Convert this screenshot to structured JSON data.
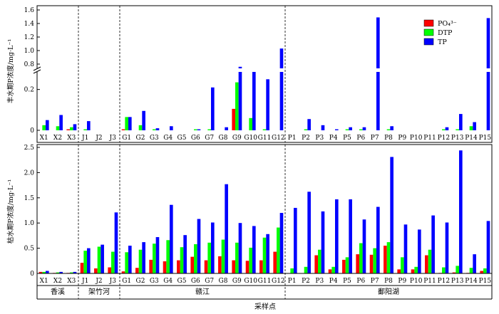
{
  "chart_data": [
    {
      "type": "bar",
      "ylabel": "丰水期P浓度/mg·L⁻¹",
      "y_axis_break": true,
      "ylim_lower": [
        0,
        0.3
      ],
      "ylim_upper": [
        0.6,
        1.6
      ],
      "yticks_lower": [
        "0",
        "0.2"
      ],
      "yticks_upper": [
        "0.8",
        "1.0",
        "1.2",
        "1.4",
        "1.6"
      ],
      "categories": [
        "X1",
        "X2",
        "X3",
        "J1",
        "J2",
        "J3",
        "G1",
        "G2",
        "G3",
        "G4",
        "G5",
        "G6",
        "G7",
        "G8",
        "G9",
        "G10",
        "G11",
        "G12",
        "P1",
        "P2",
        "P3",
        "P4",
        "P5",
        "P6",
        "P7",
        "P8",
        "P9",
        "P10",
        "P11",
        "P12",
        "P13",
        "P14",
        "P15"
      ],
      "series": [
        {
          "name": "PO₄³⁻",
          "color": "#ff0000",
          "values": [
            0,
            0,
            0.005,
            0,
            0,
            0,
            0.005,
            0,
            0,
            0,
            0,
            0,
            0,
            0,
            0.105,
            0,
            0,
            0,
            0,
            0,
            0,
            0,
            0,
            0,
            0,
            0,
            0,
            0,
            0,
            0,
            0,
            0,
            0
          ]
        },
        {
          "name": "DTP",
          "color": "#00ff00",
          "values": [
            0.025,
            0.02,
            0.015,
            0.005,
            0,
            0,
            0.065,
            0.025,
            0.005,
            0,
            0,
            0.005,
            0.005,
            0,
            0.235,
            0.06,
            0.005,
            0,
            0,
            0.005,
            0,
            0,
            0.005,
            0.005,
            0,
            0.005,
            0,
            0,
            0,
            0.005,
            0.005,
            0.02,
            0
          ]
        },
        {
          "name": "TP",
          "color": "#0000ff",
          "values": [
            0.05,
            0.075,
            0.03,
            0.045,
            0,
            0,
            0.065,
            0.095,
            0.01,
            0.02,
            0,
            0.005,
            0.21,
            0.015,
            0.76,
            0.7,
            0.25,
            1.03,
            0,
            0.055,
            0.025,
            0.005,
            0.015,
            0.015,
            1.49,
            0.02,
            0,
            0,
            0,
            0.015,
            0.08,
            0.04,
            1.48
          ]
        }
      ]
    },
    {
      "type": "bar",
      "ylabel": "枯水期P浓度/mg·L⁻¹",
      "xlabel": "采样点",
      "ylim": [
        0,
        2.5
      ],
      "yticks": [
        "0",
        "0.5",
        "1.0",
        "1.5",
        "2.0",
        "2.5"
      ],
      "categories": [
        "X1",
        "X2",
        "X3",
        "J1",
        "J2",
        "J3",
        "G1",
        "G2",
        "G3",
        "G4",
        "G5",
        "G6",
        "G7",
        "G8",
        "G9",
        "G10",
        "G11",
        "G12",
        "P1",
        "P2",
        "P3",
        "P4",
        "P5",
        "P6",
        "P7",
        "P8",
        "P9",
        "P10",
        "P11",
        "P12",
        "P13",
        "P14",
        "P15"
      ],
      "series": [
        {
          "name": "PO₄³⁻",
          "color": "#ff0000",
          "values": [
            0.03,
            0.01,
            0.01,
            0.21,
            0.1,
            0.12,
            0.04,
            0.11,
            0.27,
            0.24,
            0.26,
            0.33,
            0.26,
            0.34,
            0.26,
            0.25,
            0.26,
            0.43,
            0,
            0,
            0.36,
            0.08,
            0.27,
            0.38,
            0.37,
            0.55,
            0.08,
            0.08,
            0.36,
            0.01,
            0.02,
            0.01,
            0.05
          ]
        },
        {
          "name": "DTP",
          "color": "#00ff00",
          "values": [
            0.03,
            0.02,
            0.02,
            0.45,
            0.53,
            0.43,
            0.42,
            0.47,
            0.59,
            0.66,
            0.52,
            0.58,
            0.61,
            0.67,
            0.61,
            0.51,
            0.71,
            0.91,
            0.1,
            0.13,
            0.47,
            0.13,
            0.32,
            0.6,
            0.5,
            0.62,
            0.32,
            0.13,
            0.47,
            0.12,
            0.15,
            0.11,
            0.1
          ]
        },
        {
          "name": "TP",
          "color": "#0000ff",
          "values": [
            0.05,
            0.03,
            0.03,
            0.5,
            0.57,
            1.21,
            0.55,
            0.62,
            0.72,
            1.36,
            0.76,
            1.08,
            1.01,
            1.77,
            1.0,
            0.94,
            0.78,
            1.2,
            1.3,
            1.62,
            1.23,
            1.47,
            1.47,
            1.07,
            1.32,
            2.31,
            0.97,
            0.87,
            1.15,
            1.01,
            2.44,
            0.38,
            1.04
          ]
        }
      ]
    }
  ],
  "legend": [
    {
      "label": "PO₄³⁻",
      "color": "#ff0000"
    },
    {
      "label": "DTP",
      "color": "#00ff00"
    },
    {
      "label": "TP",
      "color": "#0000ff"
    }
  ],
  "regions": [
    "香溪",
    "架竹河",
    "赣江",
    "鄱阳湖"
  ],
  "region_counts": [
    3,
    3,
    12,
    15
  ]
}
